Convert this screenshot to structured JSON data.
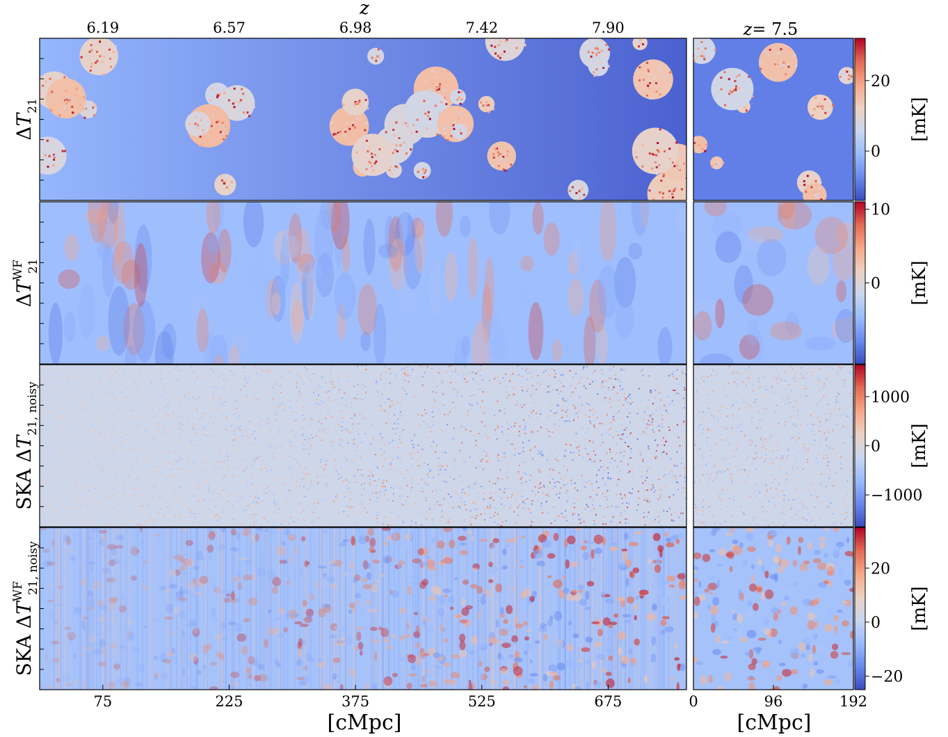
{
  "chart_data": {
    "type": "heatmap",
    "top_axis": {
      "label": "z",
      "tick_labels": [
        "6.19",
        "6.57",
        "6.98",
        "7.42",
        "7.90"
      ],
      "tick_positions_cMpc": [
        75,
        225,
        375,
        525,
        675
      ]
    },
    "bottom_axis_left": {
      "label": "[cMpc]",
      "tick_labels": [
        "75",
        "225",
        "375",
        "525",
        "675"
      ],
      "range": [
        0,
        768
      ]
    },
    "bottom_axis_right": {
      "label": "[cMpc]",
      "tick_labels": [
        "0",
        "96",
        "192"
      ],
      "range": [
        0,
        192
      ]
    },
    "slice_title": {
      "prefix": "z",
      "value": "= 7.5"
    },
    "colorbar_unit": "[mK]",
    "colormap": [
      "#3b4cc0",
      "#6889ee",
      "#9abbff",
      "#c9d7f0",
      "#edd1c2",
      "#f7a889",
      "#e36a53",
      "#b40426"
    ],
    "rows": [
      {
        "ylabel": {
          "prefix": "",
          "base": "ΔT",
          "sub": "21",
          "sup": ""
        },
        "style": "bubbles",
        "colorbar": {
          "min": -14,
          "max": 32,
          "tick_values": [
            0,
            20
          ],
          "tick_labels": [
            "0",
            "20"
          ]
        }
      },
      {
        "ylabel": {
          "prefix": "",
          "base": "ΔT",
          "sub": "21",
          "sup": "WF"
        },
        "style": "smooth",
        "colorbar": {
          "min": -11,
          "max": 11,
          "tick_values": [
            0,
            10
          ],
          "tick_labels": [
            "0",
            "10"
          ]
        }
      },
      {
        "ylabel": {
          "prefix": "SKA ",
          "base": "ΔT",
          "sub": "21, noisy",
          "sup": ""
        },
        "style": "noise",
        "colorbar": {
          "min": -1650,
          "max": 1650,
          "tick_values": [
            -1000,
            0,
            1000
          ],
          "tick_labels": [
            "−1000",
            "0",
            "1000"
          ]
        }
      },
      {
        "ylabel": {
          "prefix": "SKA ",
          "base": "ΔT",
          "sub": "21, noisy",
          "sup": "WF"
        },
        "style": "blobs",
        "colorbar": {
          "min": -25,
          "max": 35,
          "tick_values": [
            -20,
            0,
            20
          ],
          "tick_labels": [
            "−20",
            "0",
            "20"
          ]
        }
      }
    ]
  }
}
